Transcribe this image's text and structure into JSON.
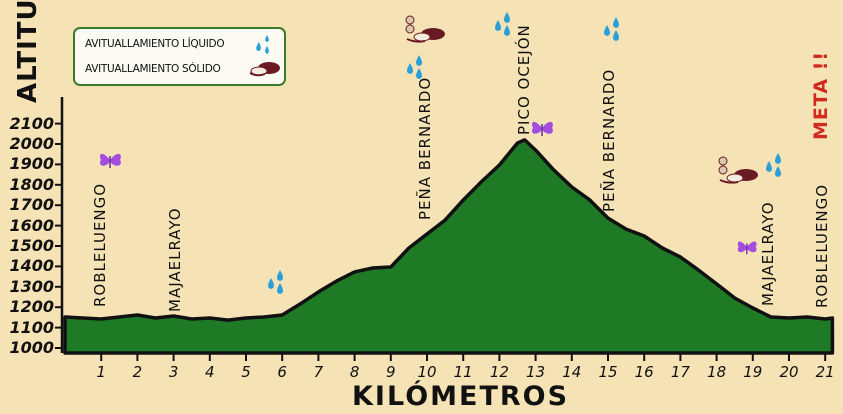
{
  "chart_data": {
    "type": "area",
    "title": "",
    "xlabel": "KILÓMETROS",
    "ylabel": "ALTITUD",
    "xlim": [
      0,
      21.2
    ],
    "ylim": [
      1000,
      2100
    ],
    "grid": false,
    "x_ticks": [
      1,
      2,
      3,
      4,
      5,
      6,
      7,
      8,
      9,
      10,
      11,
      12,
      13,
      14,
      15,
      16,
      17,
      18,
      19,
      20,
      21
    ],
    "y_ticks": [
      1000,
      1100,
      1200,
      1300,
      1400,
      1500,
      1600,
      1700,
      1800,
      1900,
      2000,
      2100
    ],
    "x": [
      0,
      0.5,
      1,
      1.5,
      2,
      2.5,
      3,
      3.5,
      4,
      4.5,
      5,
      5.5,
      6,
      6.5,
      7,
      7.5,
      8,
      8.5,
      9,
      9.5,
      10,
      10.5,
      11,
      11.5,
      12,
      12.5,
      12.7,
      13,
      13.5,
      14,
      14.5,
      15,
      15.5,
      16,
      16.5,
      17,
      17.5,
      18,
      18.5,
      19,
      19.5,
      20,
      20.5,
      21,
      21.2
    ],
    "series": [
      {
        "name": "Altitud",
        "values": [
          1152,
          1147,
          1142,
          1152,
          1162,
          1147,
          1157,
          1142,
          1147,
          1137,
          1147,
          1152,
          1162,
          1216,
          1275,
          1328,
          1373,
          1392,
          1397,
          1490,
          1559,
          1627,
          1725,
          1814,
          1897,
          2005,
          2020,
          1970,
          1873,
          1789,
          1725,
          1637,
          1583,
          1549,
          1490,
          1446,
          1382,
          1314,
          1245,
          1196,
          1152,
          1147,
          1152,
          1142,
          1147
        ]
      }
    ],
    "legend": [
      {
        "label": "AVITUALLAMIENTO LÍQUIDO",
        "icon": "water-drops-icon"
      },
      {
        "label": "AVITUALLAMIENTO SÓLIDO",
        "icon": "food-icon"
      }
    ],
    "annotations": [
      {
        "label": "ROBLELUENGO",
        "km": 1,
        "icon": "butterfly-icon"
      },
      {
        "label": "MAJAELRAYO",
        "km": 3
      },
      {
        "label": "water",
        "km": 6,
        "icon": "water-drops-icon"
      },
      {
        "label": "PEÑA BERNARDO",
        "km": 10,
        "icon": [
          "food-icon",
          "water-drops-icon"
        ]
      },
      {
        "label": "PICO OCEJÓN",
        "km": 12.7,
        "icon": [
          "water-drops-icon",
          "butterfly-icon"
        ]
      },
      {
        "label": "PEÑA BERNARDO",
        "km": 15.2,
        "icon": "water-drops-icon"
      },
      {
        "label": "MAJAELRAYO",
        "km": 19.2,
        "icon": [
          "food-icon",
          "water-drops-icon",
          "butterfly-icon"
        ]
      },
      {
        "label": "ROBLELUENGO",
        "km": 21
      },
      {
        "label": "META !!",
        "km": 21
      }
    ]
  },
  "colors": {
    "background": "#f6e3b5",
    "fill": "#1e7a25",
    "outline": "#111111",
    "water": "#2a9fd8",
    "food": "#6a1a22",
    "butterfly": "#a24de0",
    "meta": "#d12a1e",
    "legend_border": "#3a7a2a"
  },
  "labels": {
    "ylabel": "ALTITUD",
    "xlabel": "KILÓMETROS",
    "legend_liquid": "AVITUALLAMIENTO LÍQUIDO",
    "legend_solid": "AVITUALLAMIENTO SÓLIDO",
    "place_robleluengo_start": "ROBLELUENGO",
    "place_majaelrayo_1": "MAJAELRAYO",
    "place_pena_1": "PEÑA BERNARDO",
    "place_pico": "PICO OCEJÓN",
    "place_pena_2": "PEÑA BERNARDO",
    "place_majaelrayo_2": "MAJAELRAYO",
    "place_robleluengo_end": "ROBLELUENGO",
    "meta": "META !!"
  }
}
